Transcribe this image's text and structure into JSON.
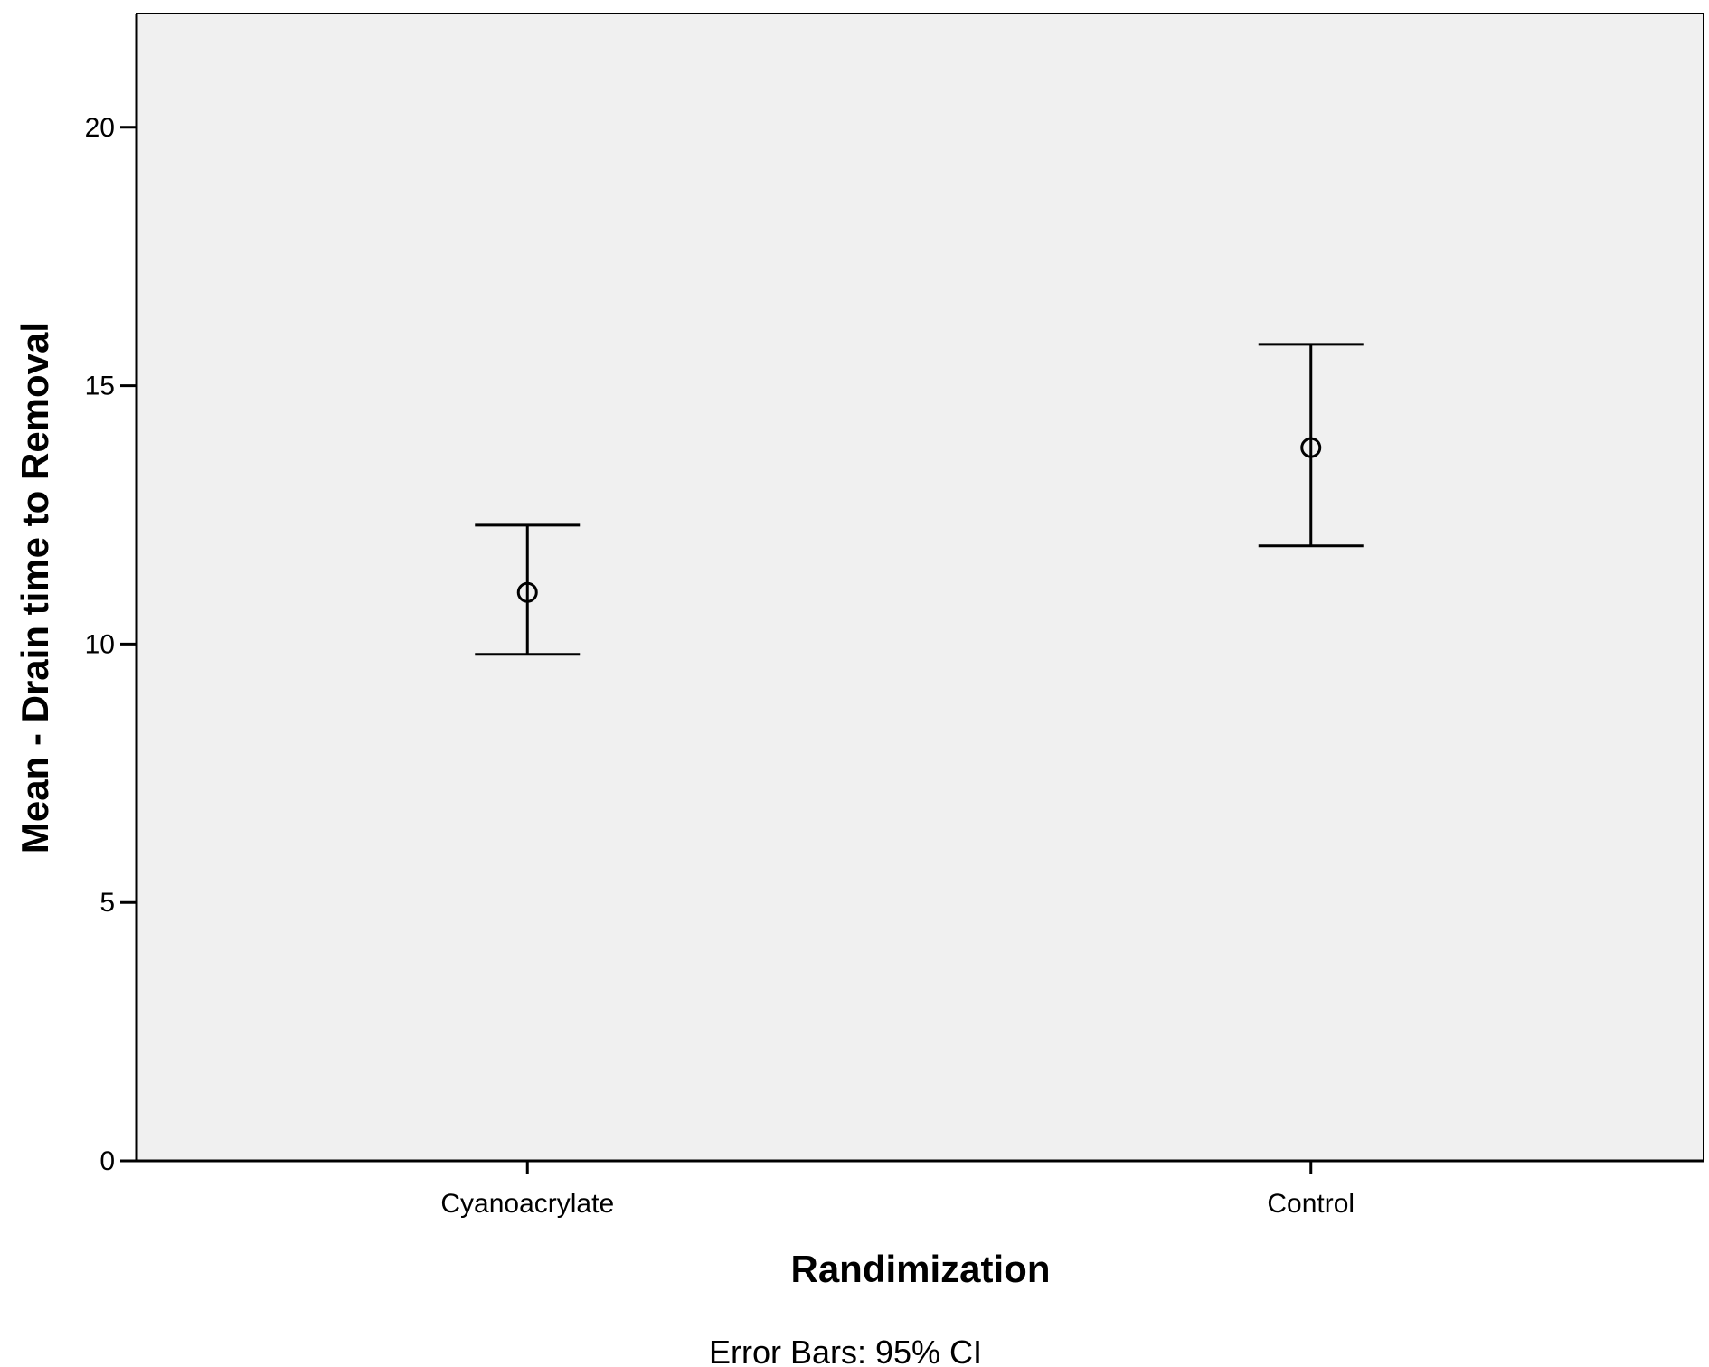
{
  "chart_data": {
    "type": "errorbar",
    "categories": [
      "Cyanoacrylate",
      "Control"
    ],
    "means": [
      11.0,
      13.8
    ],
    "ci_lower": [
      9.8,
      11.9
    ],
    "ci_upper": [
      12.3,
      15.8
    ],
    "xlabel": "Randimization",
    "ylabel": "Mean - Drain time to Removal",
    "footnote": "Error Bars: 95% CI",
    "ylim": [
      0,
      22.2
    ],
    "yticks": [
      0,
      5,
      10,
      15,
      20
    ],
    "grid": false,
    "colors": {
      "plot_background": "#f0f0f0",
      "frame": "#000000",
      "marks": "#000000"
    }
  }
}
